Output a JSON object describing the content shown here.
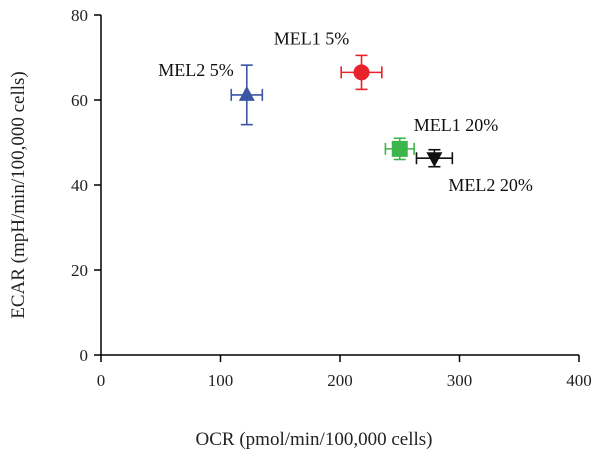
{
  "chart_data": {
    "type": "scatter",
    "title": "",
    "xlabel": "OCR (pmol/min/100,000 cells)",
    "ylabel": "ECAR (mpH/min/100,000 cells)",
    "xlim": [
      0,
      400
    ],
    "ylim": [
      0,
      80
    ],
    "x_ticks": [
      0,
      100,
      200,
      300,
      400
    ],
    "y_ticks": [
      0,
      20,
      40,
      60,
      80
    ],
    "grid": false,
    "legend": "none",
    "points": [
      {
        "label": "MEL1 5%",
        "x": 218,
        "y": 66.5,
        "x_err": 17,
        "y_err": 4,
        "marker": "circle",
        "color": "#e8232b"
      },
      {
        "label": "MEL2 5%",
        "x": 122,
        "y": 61.2,
        "x_err": 13,
        "y_err": 7,
        "marker": "triangle-up",
        "color": "#3a55a4"
      },
      {
        "label": "MEL1 20%",
        "x": 250,
        "y": 48.5,
        "x_err": 12,
        "y_err": 2.5,
        "marker": "square",
        "color": "#3cb54a"
      },
      {
        "label": "MEL2 20%",
        "x": 279,
        "y": 46.3,
        "x_err": 15,
        "y_err": 2,
        "marker": "triangle-down",
        "color": "#111111"
      }
    ]
  }
}
